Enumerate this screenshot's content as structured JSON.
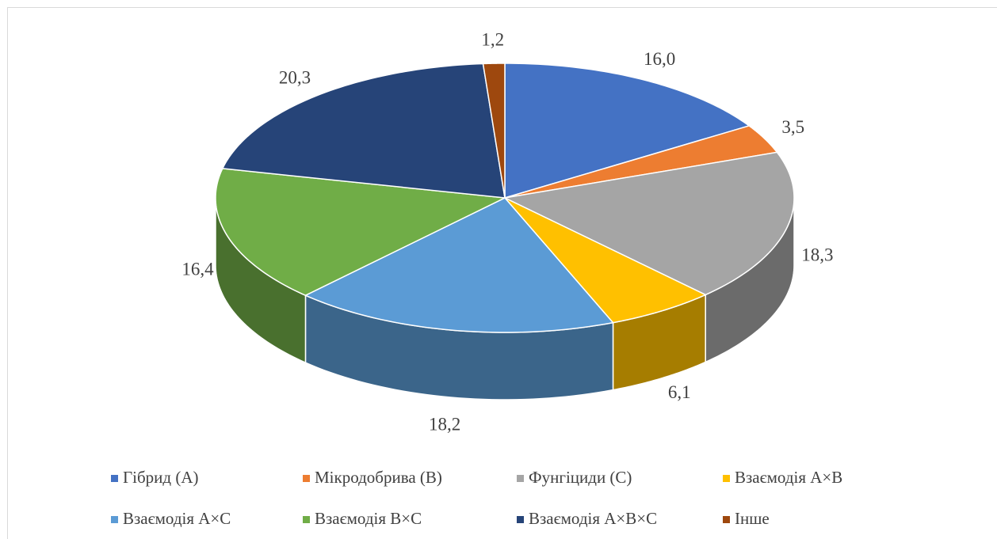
{
  "chart_data": {
    "type": "pie",
    "categories": [
      "Гібрид (A)",
      "Мікродобрива (B)",
      "Фунгіциди (C)",
      "Взаємодія A×B",
      "Взаємодія A×C",
      "Взаємодія B×C",
      "Взаємодія A×B×C",
      "Інше"
    ],
    "values": [
      16.0,
      3.5,
      18.3,
      6.1,
      18.2,
      16.4,
      20.3,
      1.2
    ],
    "value_labels": [
      "16,0",
      "3,5",
      "18,3",
      "6,1",
      "18,2",
      "16,4",
      "20,3",
      "1,2"
    ],
    "colors": [
      "#4472c4",
      "#ed7d31",
      "#a5a5a5",
      "#ffc000",
      "#5b9bd5",
      "#70ad47",
      "#264478",
      "#9e480e"
    ],
    "legend": "bottom"
  }
}
